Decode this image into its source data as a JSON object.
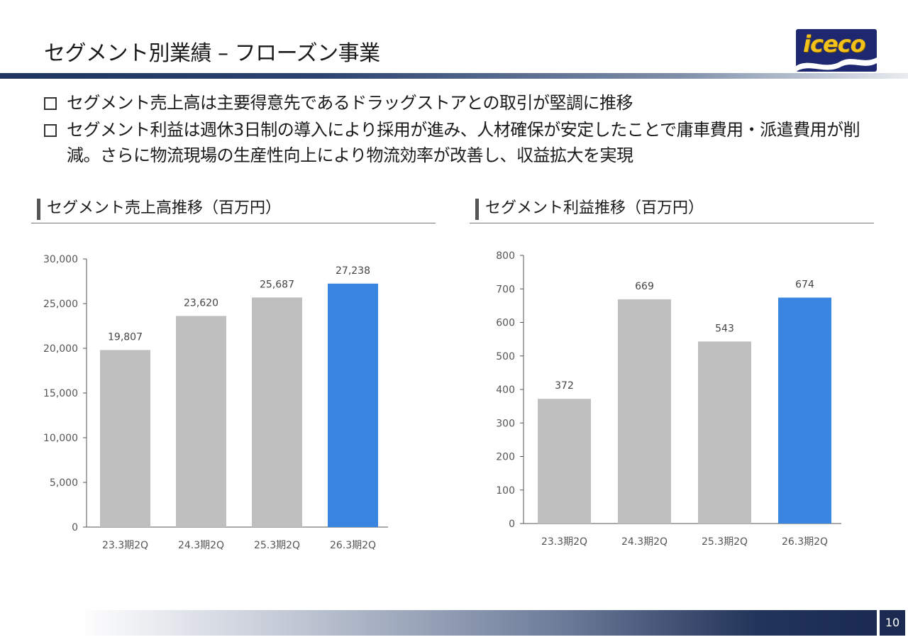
{
  "page": {
    "title": "セグメント別業績 – フローズン事業",
    "logo_text": "iceco",
    "page_number": "10"
  },
  "bullets": [
    "セグメント売上高は主要得意先であるドラッグストアとの取引が堅調に推移",
    "セグメント利益は週休3日制の導入により採用が進み、人材確保が安定したことで庸車費用・派遣費用が削減。さらに物流現場の生産性向上により物流効率が改善し、収益拡大を実現"
  ],
  "sections": {
    "sales": "セグメント売上高推移（百万円）",
    "profit": "セグメント利益推移（百万円）"
  },
  "colors": {
    "bar_gray": "#bfbfbf",
    "bar_highlight": "#3a85e0",
    "navy": "#1f3560"
  },
  "chart_data": [
    {
      "type": "bar",
      "categories": [
        "23.3期2Q",
        "24.3期2Q",
        "25.3期2Q",
        "26.3期2Q"
      ],
      "values": [
        19807,
        23620,
        25687,
        27238
      ],
      "value_labels": [
        "19,807",
        "23,620",
        "25,687",
        "27,238"
      ],
      "ylim": [
        0,
        30000
      ],
      "yticks": [
        0,
        5000,
        10000,
        15000,
        20000,
        25000,
        30000
      ],
      "ytick_labels": [
        "0",
        "5,000",
        "10,000",
        "15,000",
        "20,000",
        "25,000",
        "30,000"
      ],
      "highlight_index": 3,
      "grid": false
    },
    {
      "type": "bar",
      "categories": [
        "23.3期2Q",
        "24.3期2Q",
        "25.3期2Q",
        "26.3期2Q"
      ],
      "values": [
        372,
        669,
        543,
        674
      ],
      "value_labels": [
        "372",
        "669",
        "543",
        "674"
      ],
      "ylim": [
        0,
        800
      ],
      "yticks": [
        0,
        100,
        200,
        300,
        400,
        500,
        600,
        700,
        800
      ],
      "ytick_labels": [
        "0",
        "100",
        "200",
        "300",
        "400",
        "500",
        "600",
        "700",
        "800"
      ],
      "highlight_index": 3,
      "grid": false
    }
  ]
}
